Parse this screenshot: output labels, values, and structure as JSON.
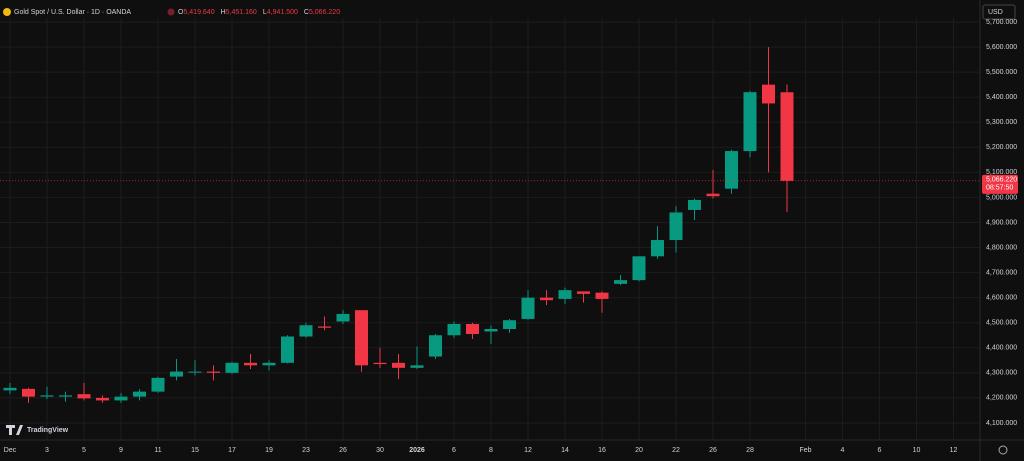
{
  "header": {
    "symbol": "Gold Spot / U.S. Dollar · 1D · OANDA",
    "ohlc": [
      {
        "key": "O",
        "value": "5,419.640"
      },
      {
        "key": "H",
        "value": "5,451.160"
      },
      {
        "key": "L",
        "value": "4,941.500"
      },
      {
        "key": "C",
        "value": "5,066.220"
      }
    ],
    "currency": "USD"
  },
  "watermark": "TradingView",
  "chart_data": {
    "type": "candlestick",
    "categories": [
      "Dec",
      null,
      "3",
      null,
      "5",
      null,
      "9",
      null,
      "11",
      null,
      "15",
      null,
      "17",
      null,
      "19",
      null,
      "23",
      null,
      "26",
      null,
      "30",
      null,
      "2026",
      null,
      "6",
      null,
      "8",
      null,
      "12",
      null,
      "14",
      null,
      "16",
      null,
      "20",
      null,
      "22",
      null,
      "26",
      null,
      "28",
      null,
      null,
      "Feb",
      null,
      "4",
      null,
      "6",
      null,
      "10",
      null,
      "12"
    ],
    "open": [
      4230,
      4236,
      4205,
      4205,
      4215,
      4200,
      4190,
      4205,
      4225,
      4285,
      4302,
      4305,
      4300,
      4340,
      4330,
      4340,
      4445,
      4485,
      4505,
      4550,
      4340,
      4340,
      4320,
      4365,
      4450,
      4495,
      4465,
      4475,
      4515,
      4600,
      4595,
      4625,
      4620,
      4655,
      4670,
      4765,
      4830,
      4950,
      5015,
      5035,
      5185,
      5450,
      5419.64,
      null,
      null,
      null,
      null,
      null,
      null,
      null,
      null,
      null
    ],
    "high": [
      4260,
      4240,
      4245,
      4225,
      4260,
      4210,
      4220,
      4235,
      4285,
      4355,
      4350,
      4330,
      4345,
      4375,
      4350,
      4450,
      4500,
      4525,
      4550,
      4550,
      4400,
      4375,
      4405,
      4455,
      4505,
      4500,
      4490,
      4515,
      4630,
      4630,
      4640,
      4625,
      4625,
      4690,
      4765,
      4885,
      4965,
      4995,
      5110,
      5190,
      5425,
      5600,
      5451.16,
      null,
      null,
      null,
      null,
      null,
      null,
      null,
      null,
      null
    ],
    "low": [
      4215,
      4180,
      4195,
      4185,
      4190,
      4180,
      4180,
      4190,
      4220,
      4270,
      4290,
      4270,
      4295,
      4315,
      4310,
      4338,
      4440,
      4470,
      4495,
      4305,
      4320,
      4275,
      4315,
      4355,
      4440,
      4435,
      4415,
      4460,
      4510,
      4570,
      4575,
      4580,
      4540,
      4650,
      4665,
      4755,
      4780,
      4910,
      4995,
      5015,
      5160,
      5100,
      4941.5,
      null,
      null,
      null,
      null,
      null,
      null,
      null,
      null,
      null
    ],
    "close": [
      4240,
      4205,
      4210,
      4210,
      4198,
      4190,
      4205,
      4225,
      4280,
      4305,
      4305,
      4300,
      4340,
      4330,
      4340,
      4445,
      4490,
      4480,
      4535,
      4330,
      4335,
      4320,
      4330,
      4450,
      4495,
      4455,
      4475,
      4510,
      4600,
      4590,
      4630,
      4615,
      4595,
      4670,
      4765,
      4830,
      4940,
      4990,
      5005,
      5185,
      5420,
      5375,
      5066.22,
      null,
      null,
      null,
      null,
      null,
      null,
      null,
      null,
      null
    ],
    "up_color": "#089981",
    "down_color": "#f23645",
    "ylim": [
      4032,
      5716
    ],
    "yticks": [
      {
        "value": 4100,
        "label": "4,100.000"
      },
      {
        "value": 4200,
        "label": "4,200.000"
      },
      {
        "value": 4300,
        "label": "4,300.000"
      },
      {
        "value": 4400,
        "label": "4,400.000"
      },
      {
        "value": 4500,
        "label": "4,500.000"
      },
      {
        "value": 4600,
        "label": "4,600.000"
      },
      {
        "value": 4700,
        "label": "4,700.000"
      },
      {
        "value": 4800,
        "label": "4,800.000"
      },
      {
        "value": 4900,
        "label": "4,900.000"
      },
      {
        "value": 5000,
        "label": "5,000.000"
      },
      {
        "value": 5100,
        "label": "5,100.000"
      },
      {
        "value": 5200,
        "label": "5,200.000"
      },
      {
        "value": 5300,
        "label": "5,300.000"
      },
      {
        "value": 5400,
        "label": "5,400.000"
      },
      {
        "value": 5500,
        "label": "5,500.000"
      },
      {
        "value": 5600,
        "label": "5,600.000"
      },
      {
        "value": 5700,
        "label": "5,700.000"
      }
    ],
    "grid": true,
    "last_price_label": "5,066.220",
    "countdown": "08:57:50"
  }
}
